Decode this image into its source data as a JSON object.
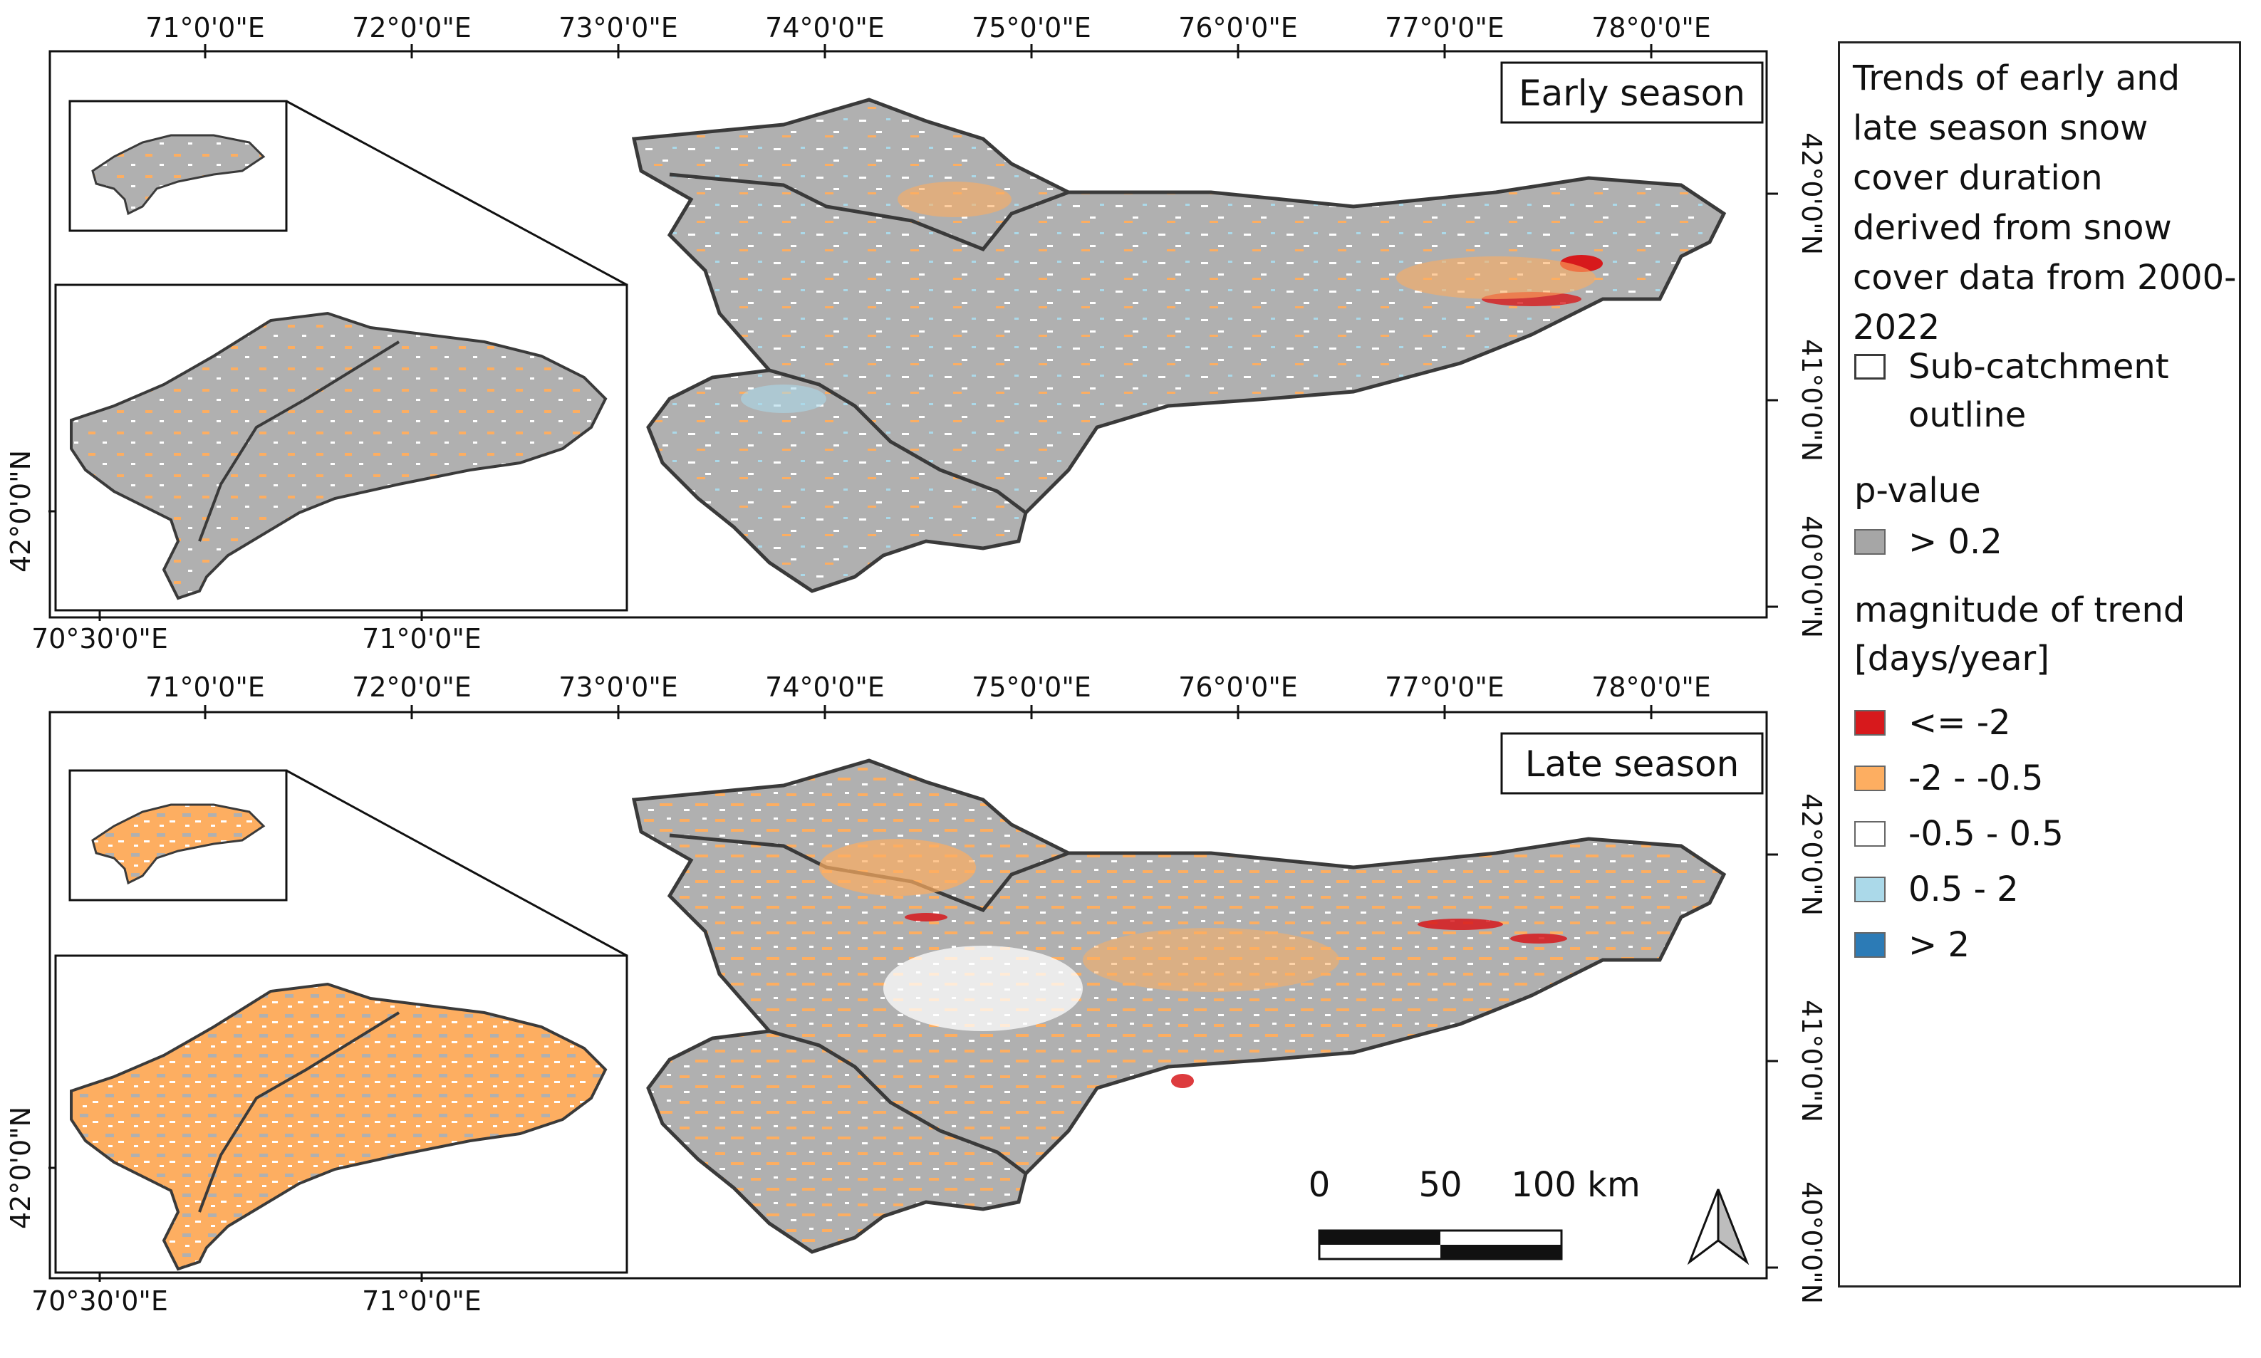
{
  "panels": {
    "early": {
      "label": "Early season"
    },
    "late": {
      "label": "Late season"
    }
  },
  "top_axis": [
    "71°0'0\"E",
    "72°0'0\"E",
    "73°0'0\"E",
    "74°0'0\"E",
    "75°0'0\"E",
    "76°0'0\"E",
    "77°0'0\"E",
    "78°0'0\"E"
  ],
  "right_axis": [
    "42°0'0\"N",
    "41°0'0\"N",
    "40°0'0\"N"
  ],
  "inset": {
    "bottom_axis": [
      "70°30'0\"E",
      "71°0'0\"E"
    ],
    "left_axis": "42°0'0\"N"
  },
  "scale_bar": {
    "labels": [
      "0",
      "50",
      "100 km"
    ]
  },
  "legend": {
    "title": "Trends of early and late season snow cover duration derived from snow cover data from 2000-2022",
    "outline_label": "Sub-catchment outline",
    "pvalue_heading": "p-value",
    "pvalue_item": {
      "label": "> 0.2",
      "color": "#a6a6a6"
    },
    "trend_heading": "magnitude of trend [days/year]",
    "trend_items": [
      {
        "label": "<= -2",
        "color": "#d7191c"
      },
      {
        "label": "-2 - -0.5",
        "color": "#fdae61"
      },
      {
        "label": "-0.5 - 0.5",
        "color": "#ffffff"
      },
      {
        "label": "0.5 - 2",
        "color": "#abd9e9"
      },
      {
        "label": "> 2",
        "color": "#2c7bb6"
      }
    ]
  },
  "colors": {
    "grey": "#b0b0b0",
    "orange": "#fdae61",
    "red": "#d7191c",
    "lightblue": "#abd9e9",
    "white": "#ffffff",
    "outline": "#3a3a3a"
  }
}
